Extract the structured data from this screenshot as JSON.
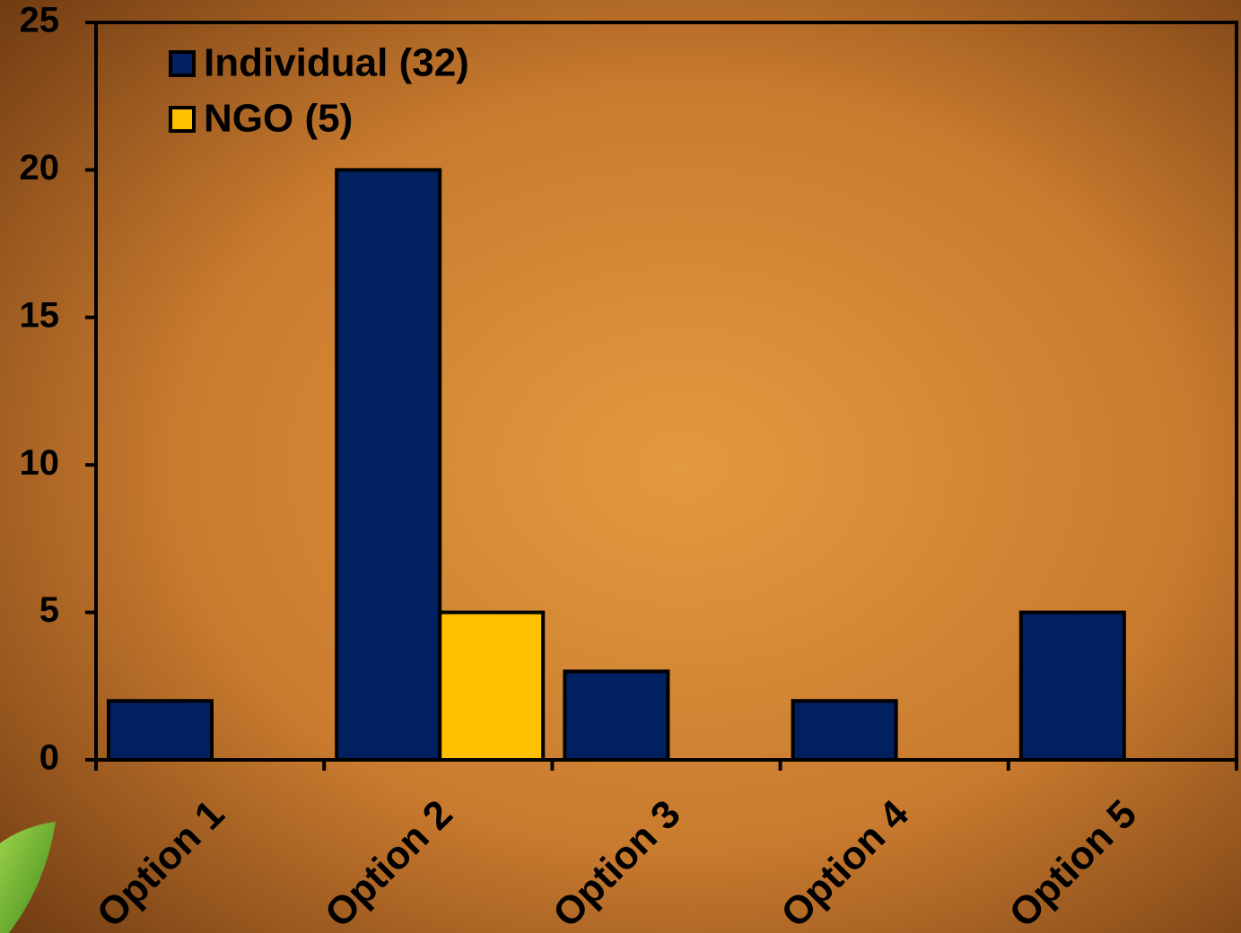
{
  "chart_data": {
    "type": "bar",
    "categories": [
      "Option 1",
      "Option 2",
      "Option 3",
      "Option 4",
      "Option 5"
    ],
    "series": [
      {
        "name": "Individual (32)",
        "color": "#002060",
        "values": [
          2,
          20,
          3,
          2,
          5
        ]
      },
      {
        "name": "NGO (5)",
        "color": "#ffc000",
        "values": [
          0,
          5,
          0,
          0,
          0
        ]
      }
    ],
    "ylim": [
      0,
      25
    ],
    "yticks": [
      0,
      5,
      10,
      15,
      20,
      25
    ],
    "grid": false,
    "legend": "top-left"
  }
}
